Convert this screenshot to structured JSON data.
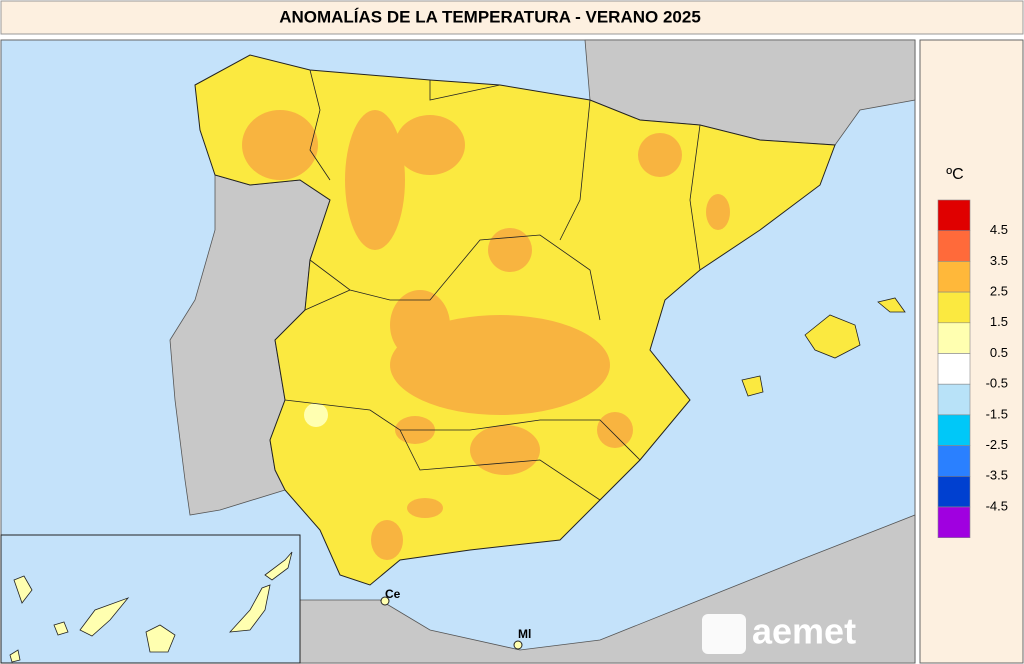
{
  "title": "ANOMALÍAS DE LA TEMPERATURA - VERANO 2025",
  "legend": {
    "unit": "ºC",
    "colors": [
      "#e00000",
      "#ff6a3a",
      "#ffb83a",
      "#fbe940",
      "#ffffb0",
      "#ffffff",
      "#b8e2f8",
      "#00c8f8",
      "#2a80ff",
      "#0040d0",
      "#a000e0"
    ],
    "ticks": [
      4.5,
      3.5,
      2.5,
      1.5,
      0.5,
      -0.5,
      -1.5,
      -2.5,
      -3.5,
      -4.5
    ]
  },
  "places": [
    {
      "label": "Ce"
    },
    {
      "label": "Ml"
    }
  ],
  "logo": "aemet"
}
